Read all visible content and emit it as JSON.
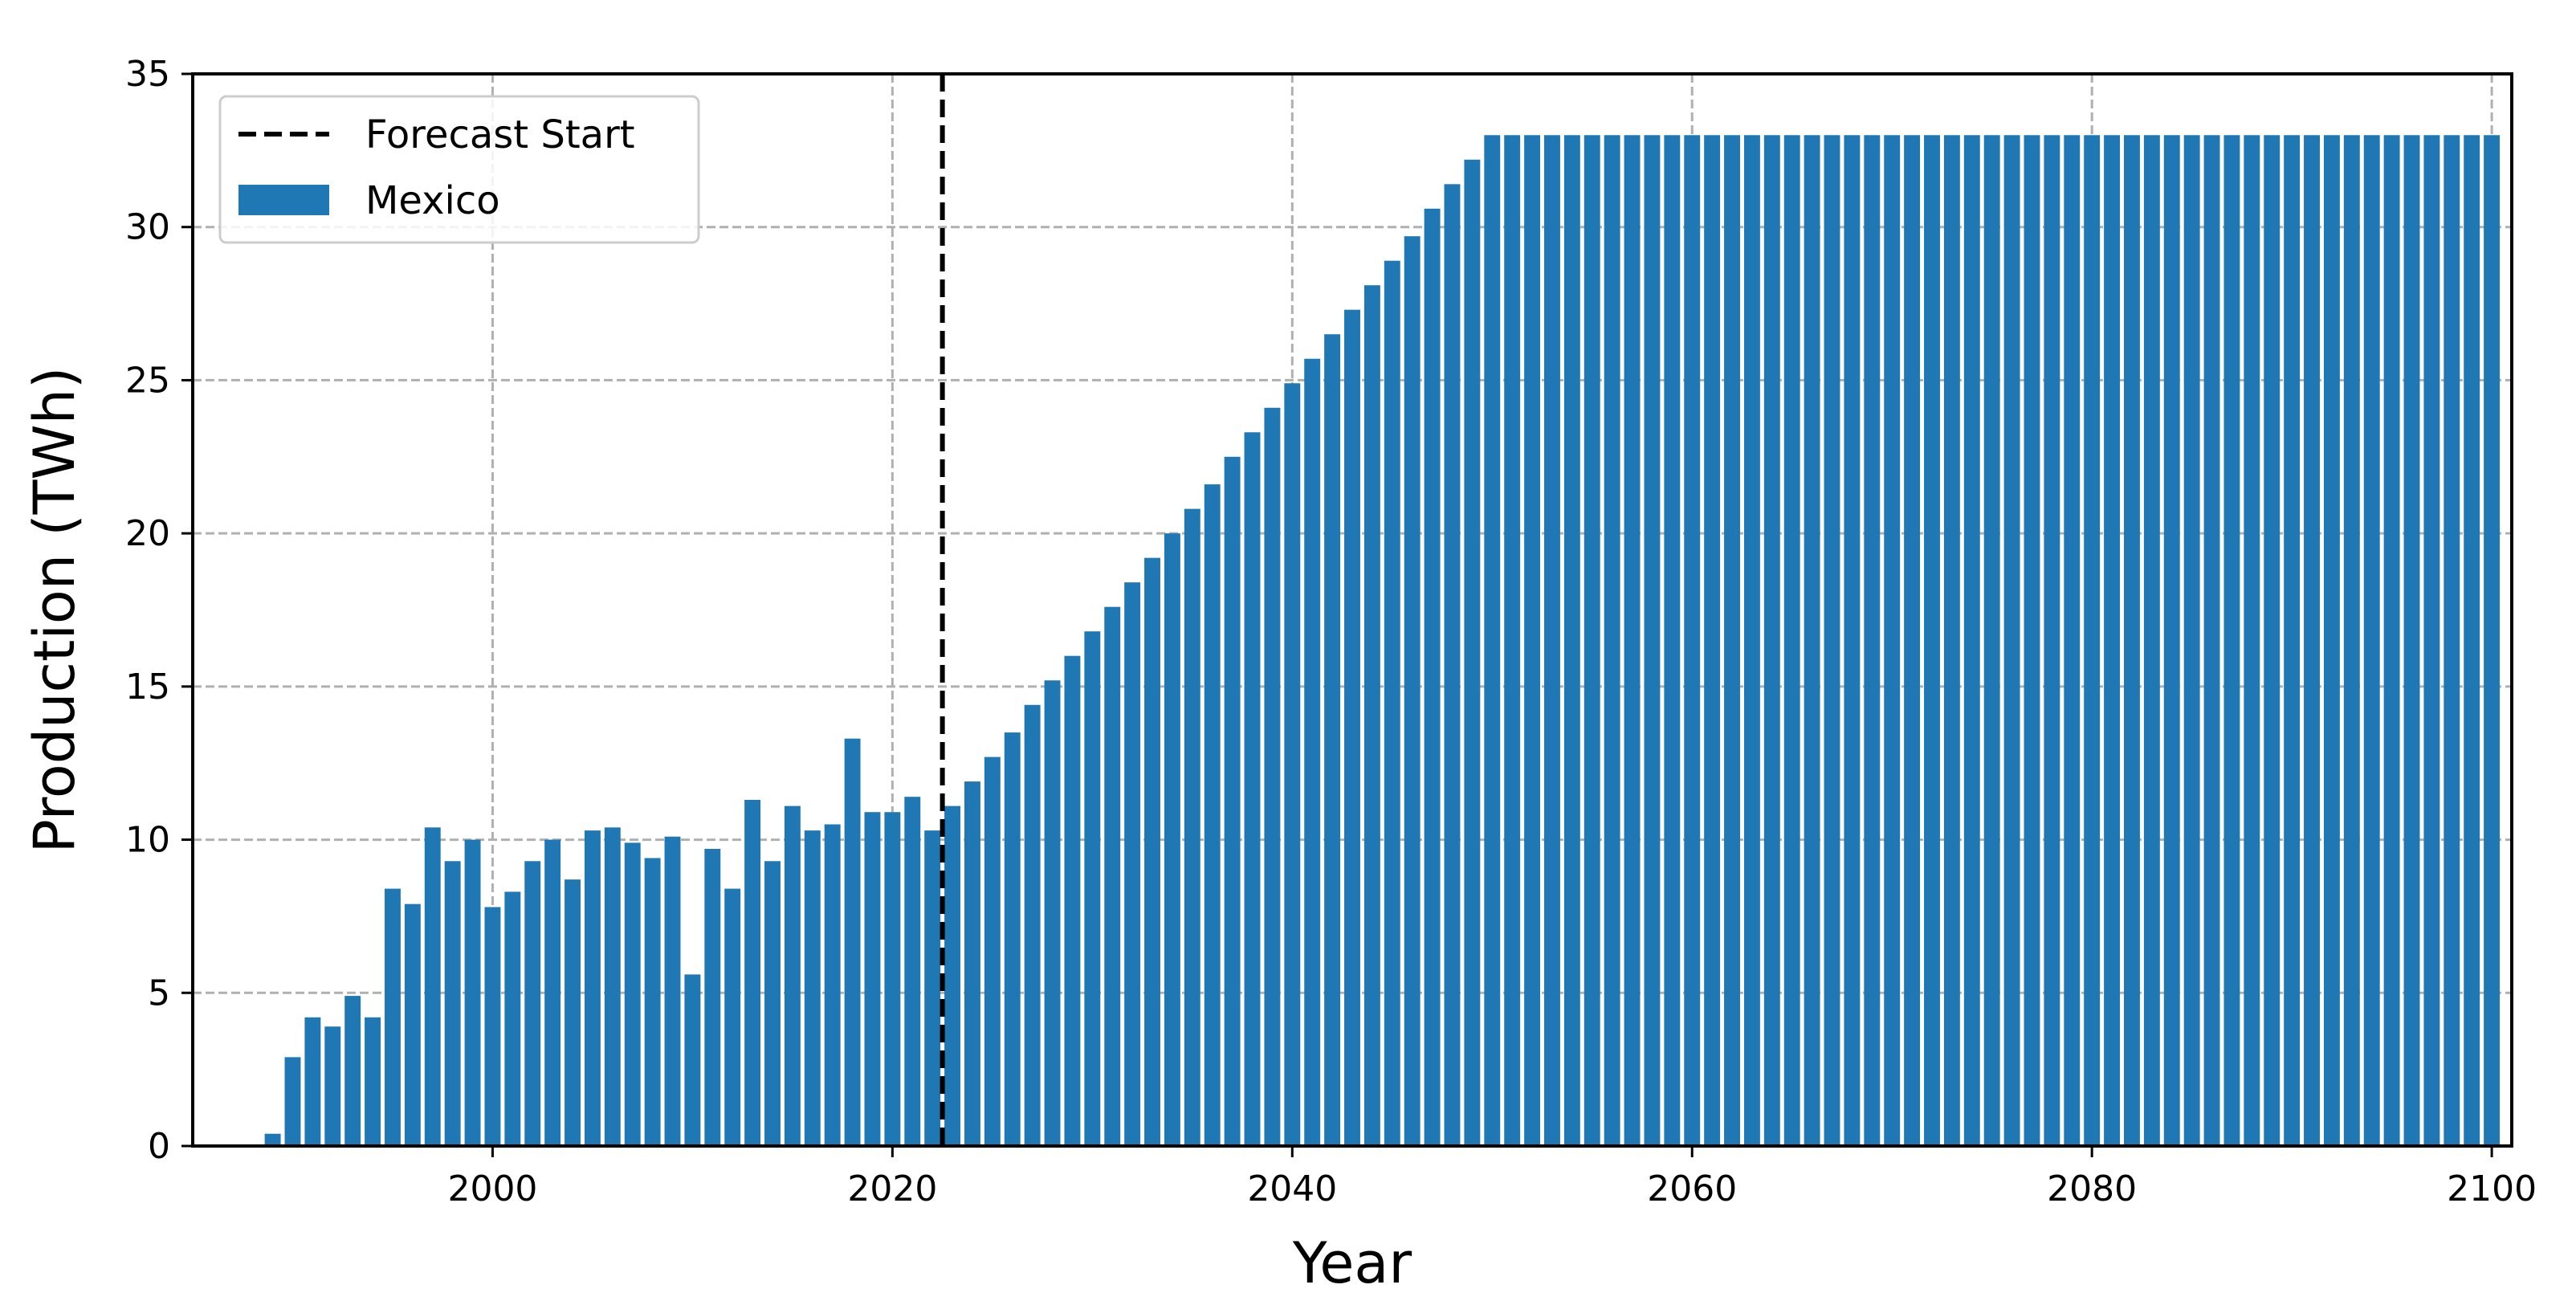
{
  "chart_data": {
    "type": "bar",
    "xlabel": "Year",
    "ylabel": "Production (TWh)",
    "xlim": [
      1985,
      2101
    ],
    "ylim": [
      0,
      35
    ],
    "x_ticks": [
      2000,
      2020,
      2040,
      2060,
      2080,
      2100
    ],
    "y_ticks": [
      0,
      5,
      10,
      15,
      20,
      25,
      30,
      35
    ],
    "grid": true,
    "legend_position": "top-left",
    "forecast_start": 2022.5,
    "colors": {
      "bar": "#1f77b4",
      "forecast_line": "#000000"
    },
    "legend": [
      {
        "label": "Forecast Start",
        "kind": "dashed-line"
      },
      {
        "label": "Mexico",
        "kind": "bar"
      }
    ],
    "series": [
      {
        "name": "Mexico",
        "x": [
          1989,
          1990,
          1991,
          1992,
          1993,
          1994,
          1995,
          1996,
          1997,
          1998,
          1999,
          2000,
          2001,
          2002,
          2003,
          2004,
          2005,
          2006,
          2007,
          2008,
          2009,
          2010,
          2011,
          2012,
          2013,
          2014,
          2015,
          2016,
          2017,
          2018,
          2019,
          2020,
          2021,
          2022,
          2023,
          2024,
          2025,
          2026,
          2027,
          2028,
          2029,
          2030,
          2031,
          2032,
          2033,
          2034,
          2035,
          2036,
          2037,
          2038,
          2039,
          2040,
          2041,
          2042,
          2043,
          2044,
          2045,
          2046,
          2047,
          2048,
          2049,
          2050,
          2051,
          2052,
          2053,
          2054,
          2055,
          2056,
          2057,
          2058,
          2059,
          2060,
          2061,
          2062,
          2063,
          2064,
          2065,
          2066,
          2067,
          2068,
          2069,
          2070,
          2071,
          2072,
          2073,
          2074,
          2075,
          2076,
          2077,
          2078,
          2079,
          2080,
          2081,
          2082,
          2083,
          2084,
          2085,
          2086,
          2087,
          2088,
          2089,
          2090,
          2091,
          2092,
          2093,
          2094,
          2095,
          2096,
          2097,
          2098,
          2099,
          2100
        ],
        "values": [
          0.4,
          2.9,
          4.2,
          3.9,
          4.9,
          4.2,
          8.4,
          7.9,
          10.4,
          9.3,
          10.0,
          7.8,
          8.3,
          9.3,
          10.0,
          8.7,
          10.3,
          10.4,
          9.9,
          9.4,
          10.1,
          5.6,
          9.7,
          8.4,
          11.3,
          9.3,
          11.1,
          10.3,
          10.5,
          13.3,
          10.9,
          10.9,
          11.4,
          10.3,
          11.1,
          11.9,
          12.7,
          13.5,
          14.4,
          15.2,
          16.0,
          16.8,
          17.6,
          18.4,
          19.2,
          20.0,
          20.8,
          21.6,
          22.5,
          23.3,
          24.1,
          24.9,
          25.7,
          26.5,
          27.3,
          28.1,
          28.9,
          29.7,
          30.6,
          31.4,
          32.2,
          33.0,
          33.0,
          33.0,
          33.0,
          33.0,
          33.0,
          33.0,
          33.0,
          33.0,
          33.0,
          33.0,
          33.0,
          33.0,
          33.0,
          33.0,
          33.0,
          33.0,
          33.0,
          33.0,
          33.0,
          33.0,
          33.0,
          33.0,
          33.0,
          33.0,
          33.0,
          33.0,
          33.0,
          33.0,
          33.0,
          33.0,
          33.0,
          33.0,
          33.0,
          33.0,
          33.0,
          33.0,
          33.0,
          33.0,
          33.0,
          33.0,
          33.0,
          33.0,
          33.0,
          33.0,
          33.0,
          33.0,
          33.0,
          33.0,
          33.0,
          33.0
        ]
      }
    ]
  }
}
